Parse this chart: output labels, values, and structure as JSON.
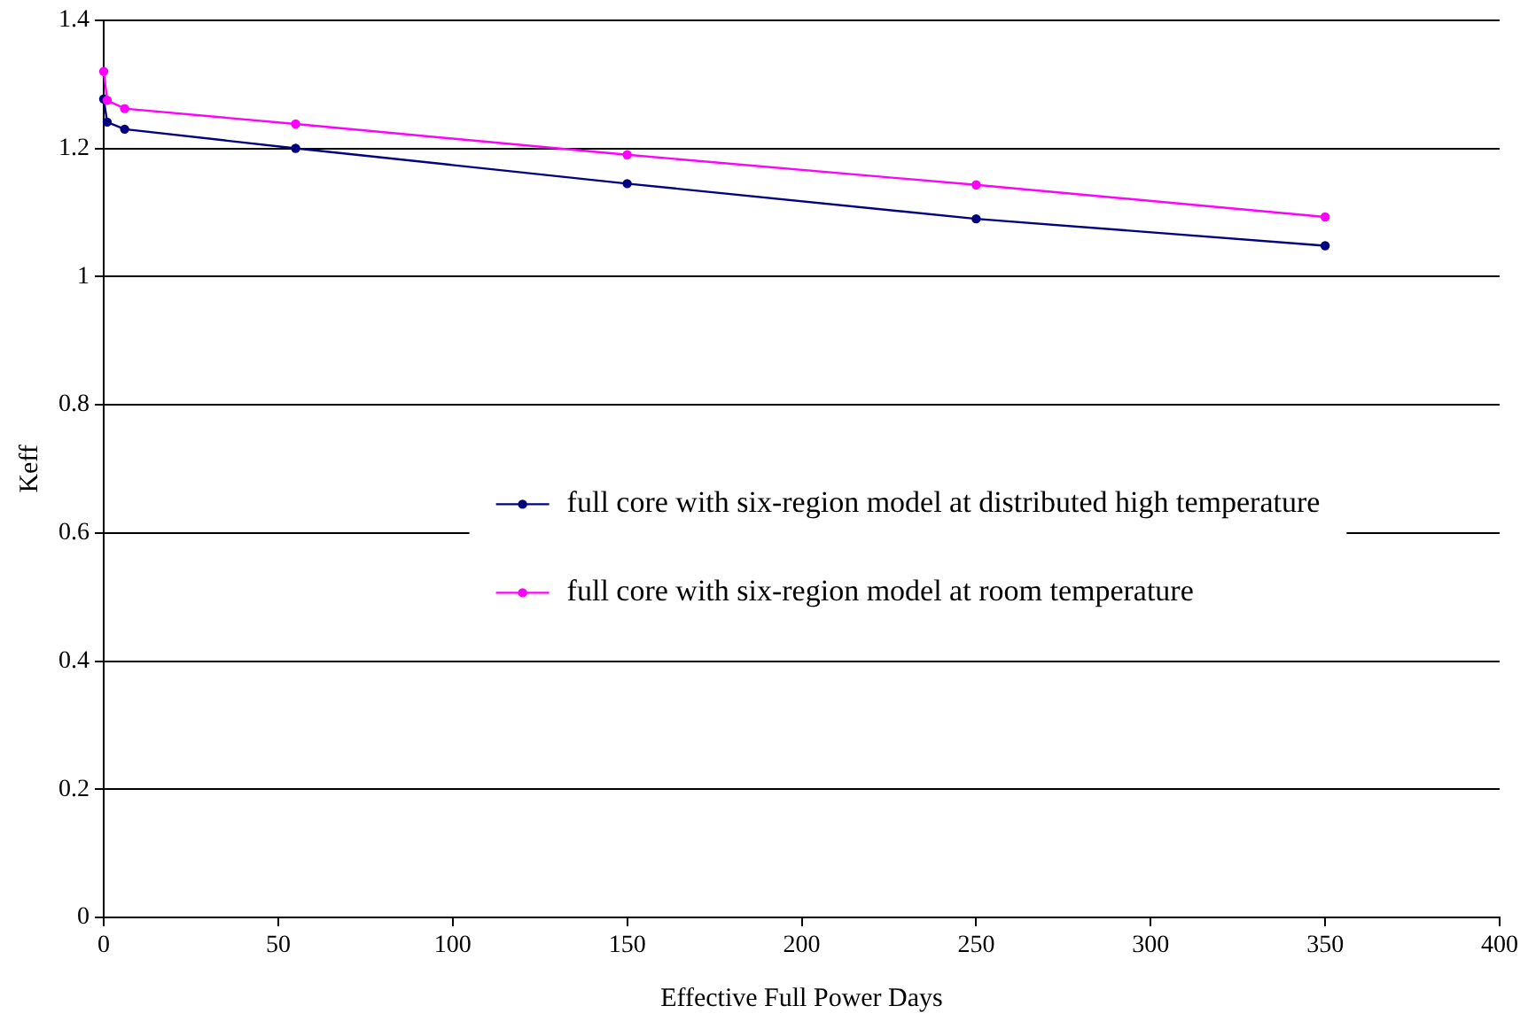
{
  "chart_data": {
    "type": "line",
    "xlabel": "Effective Full Power Days",
    "ylabel": "Keff",
    "xlim": [
      0,
      400
    ],
    "xticks": [
      0,
      50,
      100,
      150,
      200,
      250,
      300,
      350,
      400
    ],
    "ylim": [
      0,
      1.4
    ],
    "yticks": [
      0,
      0.2,
      0.4,
      0.6,
      0.8,
      1,
      1.2,
      1.4
    ],
    "x": [
      0,
      1,
      6,
      55,
      150,
      250,
      350
    ],
    "series": [
      {
        "name": "full core with six-region model at distributed high temperature",
        "color": "#000080",
        "values": [
          1.277,
          1.241,
          1.23,
          1.2,
          1.145,
          1.09,
          1.048
        ]
      },
      {
        "name": "full core with six-region model at room temperature",
        "color": "#ff00ff",
        "values": [
          1.32,
          1.275,
          1.262,
          1.238,
          1.19,
          1.143,
          1.093
        ]
      }
    ],
    "grid": "y",
    "legend": "center",
    "marker": "circle",
    "line_style": "solid"
  }
}
